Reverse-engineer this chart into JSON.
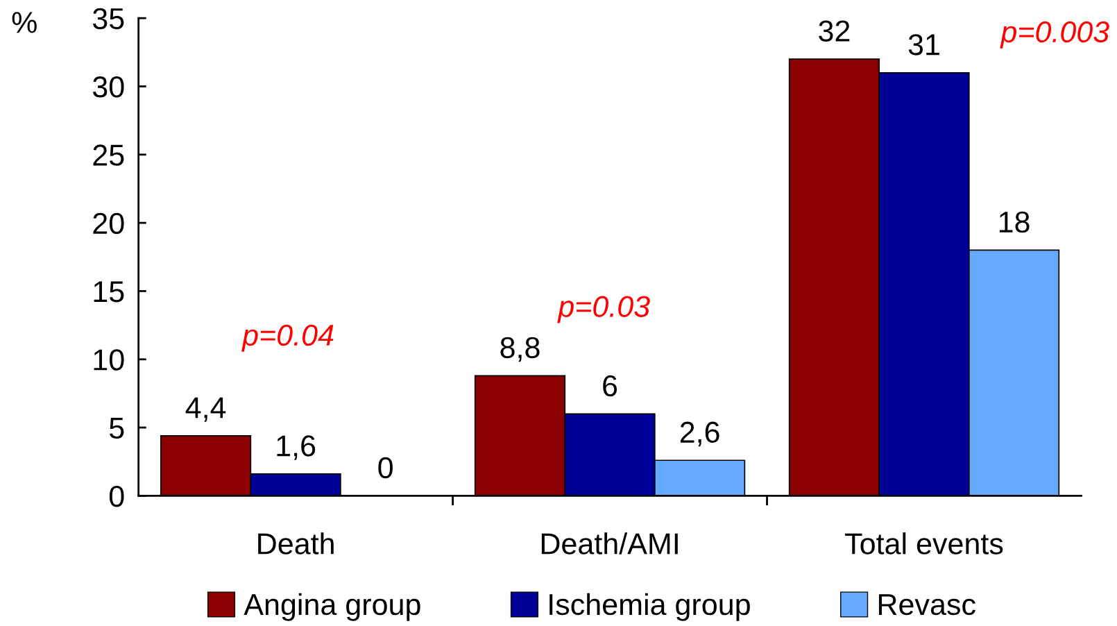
{
  "chart_data": {
    "type": "bar",
    "ylabel": "%",
    "categories": [
      "Death",
      "Death/AMI",
      "Total events"
    ],
    "series": [
      {
        "name": "Angina group",
        "color": "#8b0000",
        "values": [
          4.4,
          8.8,
          32
        ],
        "value_labels": [
          "4,4",
          "8,8",
          "32"
        ]
      },
      {
        "name": "Ischemia group",
        "color": "#000099",
        "values": [
          1.6,
          6,
          31
        ],
        "value_labels": [
          "1,6",
          "6",
          "31"
        ]
      },
      {
        "name": "Revasc",
        "color": "#66aaff",
        "values": [
          0,
          2.6,
          18
        ],
        "value_labels": [
          "0",
          "2,6",
          "18"
        ]
      }
    ],
    "annotations": [
      "p=0.04",
      "p=0.03",
      "p=0.003"
    ],
    "ylim": [
      0,
      35
    ],
    "yticks": [
      0,
      5,
      10,
      15,
      20,
      25,
      30,
      35
    ],
    "grid": false,
    "legend": "bottom"
  }
}
